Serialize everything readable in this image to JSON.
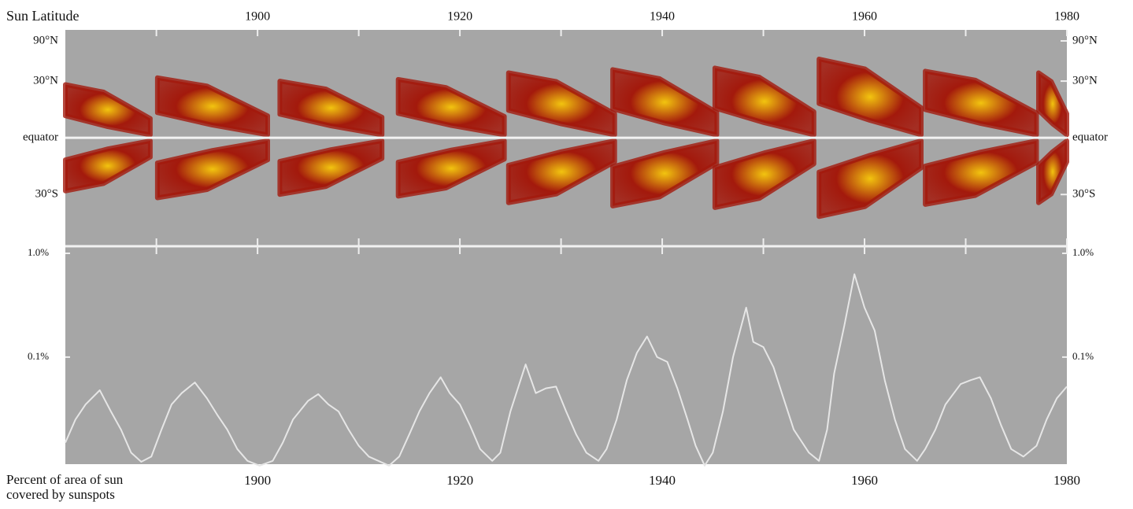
{
  "chart_data": [
    {
      "type": "butterfly",
      "y_label": "Sun Latitude",
      "xlim": [
        1881,
        1980
      ],
      "xticks": [
        1900,
        1920,
        1940,
        1960,
        1980
      ],
      "xminor_ticks": [
        1890,
        1910,
        1930,
        1950,
        1970
      ],
      "yscale": "sine",
      "ylim": [
        -60,
        90
      ],
      "yticks": [
        {
          "value": 90,
          "label": "90°N"
        },
        {
          "value": 30,
          "label": "30°N"
        },
        {
          "value": 0,
          "label": "equator"
        },
        {
          "value": -30,
          "label": "30°S"
        }
      ],
      "baseline": 0,
      "color": "#a3190c",
      "highlight_color": "#f2c40f",
      "cycles": [
        {
          "start": 1881,
          "end": 1889.4,
          "max_lat": 28
        },
        {
          "start": 1890.1,
          "end": 1901,
          "max_lat": 32
        },
        {
          "start": 1902.2,
          "end": 1912.3,
          "max_lat": 30
        },
        {
          "start": 1913.9,
          "end": 1924.4,
          "max_lat": 31
        },
        {
          "start": 1924.8,
          "end": 1935.3,
          "max_lat": 35
        },
        {
          "start": 1935.1,
          "end": 1945.4,
          "max_lat": 37
        },
        {
          "start": 1945.2,
          "end": 1955,
          "max_lat": 38
        },
        {
          "start": 1955.5,
          "end": 1965.6,
          "max_lat": 44
        },
        {
          "start": 1966,
          "end": 1977,
          "max_lat": 36
        },
        {
          "start": 1977.2,
          "end": 1980,
          "max_lat": 35
        }
      ]
    },
    {
      "type": "line",
      "y_label": "Percent of area of sun covered by sunspots",
      "xlim": [
        1881,
        1980
      ],
      "xticks": [
        1900,
        1920,
        1940,
        1960,
        1980
      ],
      "yscale": "log",
      "ylim": [
        0.0093,
        1.13
      ],
      "yticks": [
        {
          "value": 1,
          "label": "1.0%"
        },
        {
          "value": 0.1,
          "label": "0.1%"
        }
      ],
      "color": "#e6e6e6",
      "x": [
        1881,
        1882,
        1883,
        1884.4,
        1885.5,
        1886.5,
        1887.5,
        1888.5,
        1889.5,
        1890.5,
        1891.5,
        1892.5,
        1893.8,
        1895,
        1896,
        1897,
        1898,
        1899,
        1900.2,
        1901.5,
        1902.5,
        1903.5,
        1905,
        1906,
        1907,
        1908,
        1909,
        1910,
        1911,
        1913,
        1914,
        1915,
        1916,
        1917,
        1918.1,
        1919,
        1920,
        1921,
        1922,
        1923.2,
        1924,
        1925,
        1926.5,
        1927.5,
        1928.5,
        1929.5,
        1930.5,
        1931.5,
        1932.5,
        1933.7,
        1934.5,
        1935.5,
        1936.5,
        1937.5,
        1938.5,
        1939.5,
        1940.5,
        1941.5,
        1942.5,
        1943.3,
        1944.2,
        1945,
        1946,
        1947,
        1948.3,
        1949,
        1950,
        1951,
        1952,
        1953,
        1954.5,
        1955.5,
        1956.3,
        1957,
        1958,
        1959,
        1960,
        1961,
        1962,
        1963,
        1964,
        1965.2,
        1966,
        1967,
        1968,
        1969.5,
        1970.5,
        1971.4,
        1972.5,
        1973.5,
        1974.5,
        1975.7,
        1977,
        1978,
        1979,
        1980
      ],
      "values": [
        0.015,
        0.025,
        0.035,
        0.048,
        0.03,
        0.02,
        0.012,
        0.0098,
        0.011,
        0.02,
        0.035,
        0.045,
        0.057,
        0.04,
        0.028,
        0.02,
        0.013,
        0.01,
        0.009,
        0.01,
        0.015,
        0.025,
        0.038,
        0.044,
        0.035,
        0.03,
        0.02,
        0.014,
        0.011,
        0.009,
        0.011,
        0.018,
        0.03,
        0.045,
        0.064,
        0.045,
        0.035,
        0.022,
        0.013,
        0.01,
        0.012,
        0.03,
        0.085,
        0.045,
        0.05,
        0.052,
        0.03,
        0.018,
        0.012,
        0.01,
        0.013,
        0.025,
        0.06,
        0.11,
        0.158,
        0.1,
        0.09,
        0.05,
        0.025,
        0.014,
        0.009,
        0.012,
        0.03,
        0.1,
        0.3,
        0.14,
        0.125,
        0.08,
        0.04,
        0.02,
        0.012,
        0.01,
        0.02,
        0.07,
        0.2,
        0.63,
        0.3,
        0.18,
        0.06,
        0.025,
        0.013,
        0.01,
        0.013,
        0.02,
        0.035,
        0.055,
        0.06,
        0.064,
        0.04,
        0.022,
        0.013,
        0.011,
        0.014,
        0.025,
        0.04,
        0.052
      ]
    }
  ]
}
